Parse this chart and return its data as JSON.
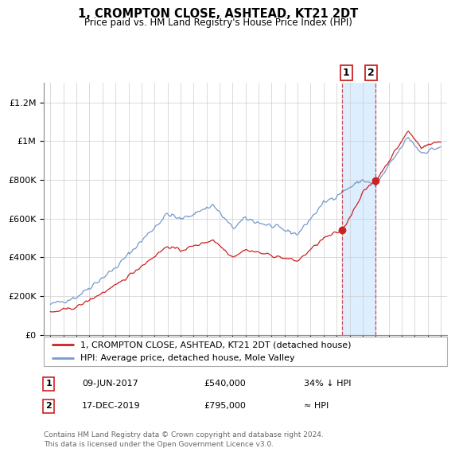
{
  "title": "1, CROMPTON CLOSE, ASHTEAD, KT21 2DT",
  "subtitle": "Price paid vs. HM Land Registry's House Price Index (HPI)",
  "legend_line1": "1, CROMPTON CLOSE, ASHTEAD, KT21 2DT (detached house)",
  "legend_line2": "HPI: Average price, detached house, Mole Valley",
  "note1_date": "09-JUN-2017",
  "note1_price": "£540,000",
  "note1_hpi": "34% ↓ HPI",
  "note2_date": "17-DEC-2019",
  "note2_price": "£795,000",
  "note2_hpi": "≈ HPI",
  "footer": "Contains HM Land Registry data © Crown copyright and database right 2024.\nThis data is licensed under the Open Government Licence v3.0.",
  "hpi_color": "#7799cc",
  "price_color": "#cc2222",
  "highlight_color": "#ddeeff",
  "vline_color": "#cc2222",
  "ylim_min": 0,
  "ylim_max": 1300000,
  "sale1_year": 2017.44,
  "sale1_price": 540000,
  "sale2_year": 2019.96,
  "sale2_price": 795000,
  "xlim_min": 1994.5,
  "xlim_max": 2025.5
}
